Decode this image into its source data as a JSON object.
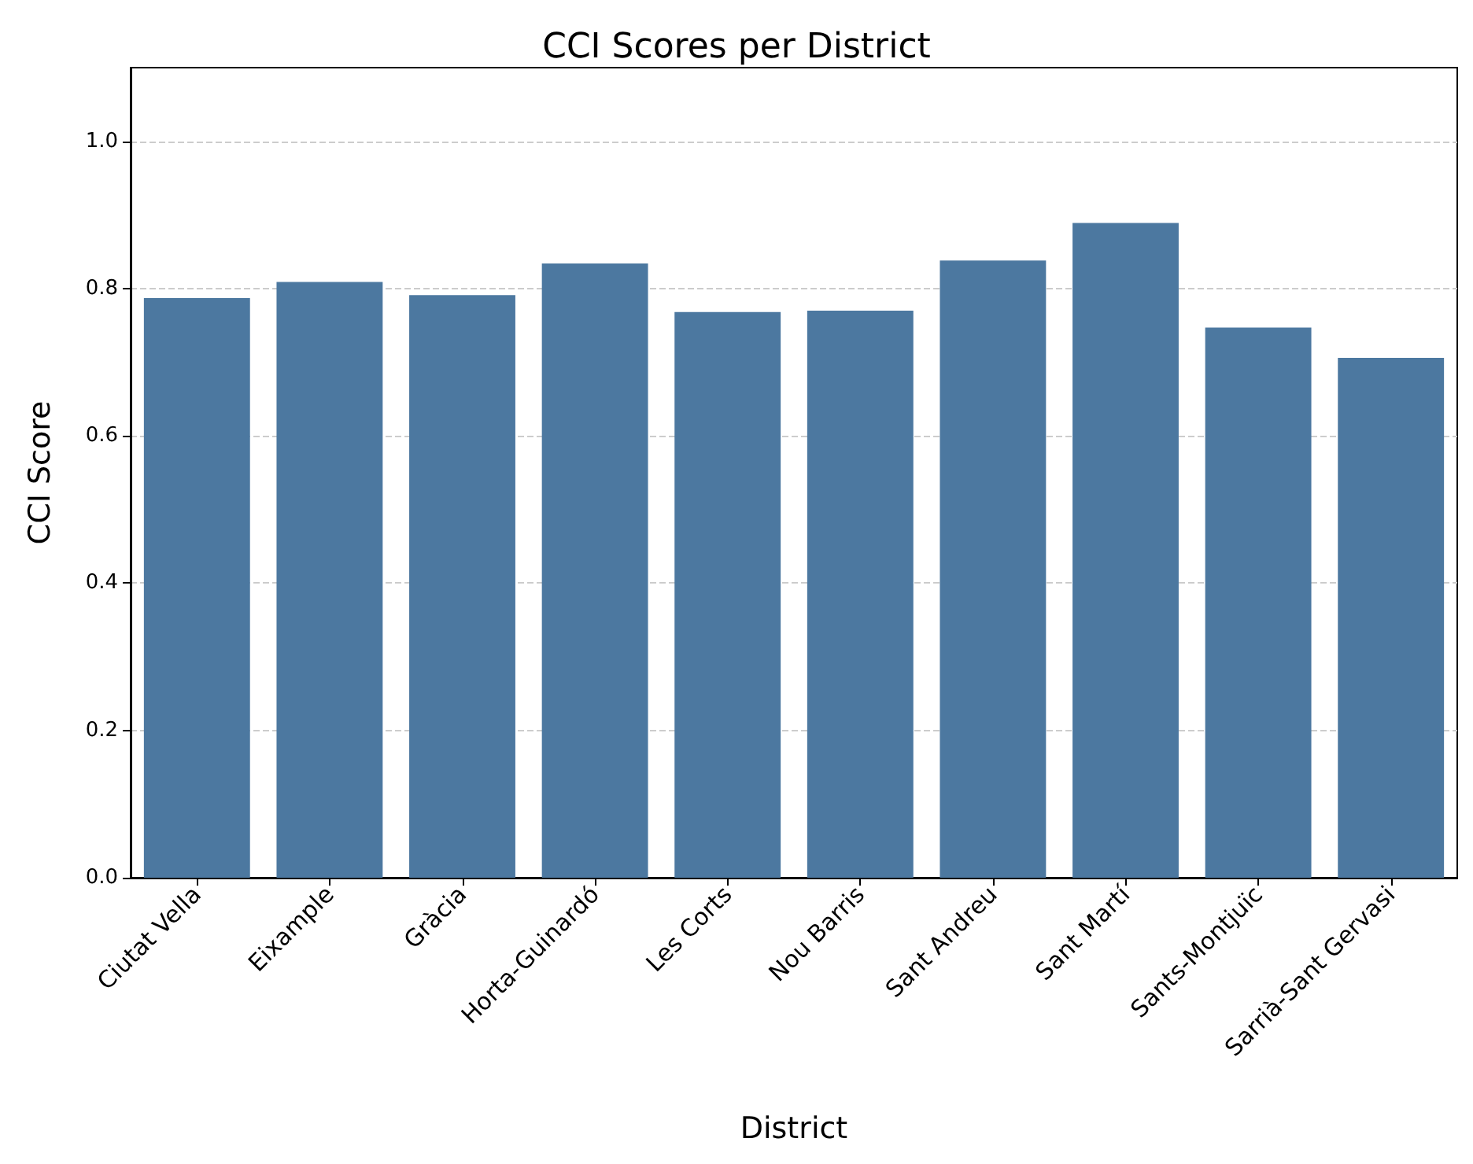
{
  "chart_data": {
    "type": "bar",
    "title": "CCI Scores per District",
    "xlabel": "District",
    "ylabel": "CCI Score",
    "categories": [
      "Ciutat Vella",
      "Eixample",
      "Gràcia",
      "Horta-Guinardó",
      "Les Corts",
      "Nou Barris",
      "Sant Andreu",
      "Sant Martí",
      "Sants-Montjuïc",
      "Sarrià-Sant Gervasi"
    ],
    "values": [
      0.787,
      0.809,
      0.791,
      0.834,
      0.768,
      0.77,
      0.838,
      0.889,
      0.747,
      0.706
    ],
    "color": "#4c78a0",
    "ylim": [
      0,
      1.1
    ],
    "yticks": [
      {
        "value": 0,
        "label": "0.0"
      },
      {
        "value": 0.2,
        "label": "0.2"
      },
      {
        "value": 0.4,
        "label": "0.4"
      },
      {
        "value": 0.6,
        "label": "0.6"
      },
      {
        "value": 0.8,
        "label": "0.8"
      },
      {
        "value": 1,
        "label": "1.0"
      }
    ],
    "grid": "y"
  }
}
